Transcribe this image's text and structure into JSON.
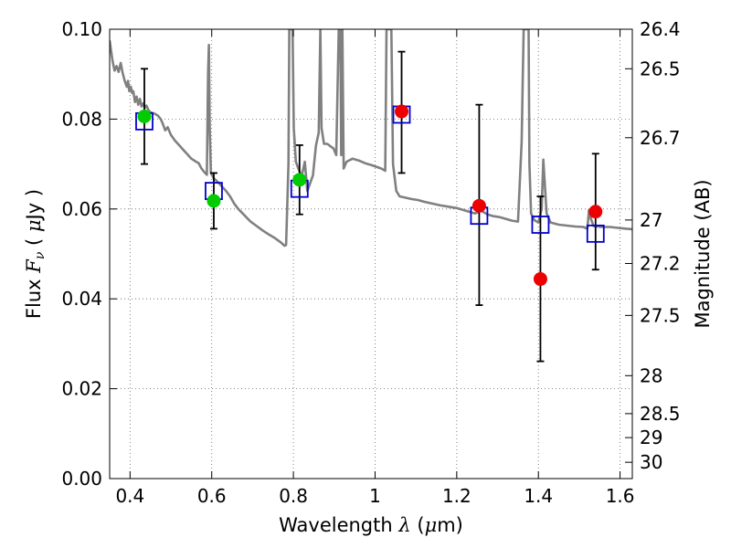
{
  "chart_data": {
    "type": "scatter",
    "xlabel": {
      "prefix": "Wavelength",
      "symbol": "λ",
      "unit_open": " (",
      "unit_mu": "μ",
      "unit_rest": "m)"
    },
    "ylabel": {
      "prefix": "Flux",
      "symbol_main": "F",
      "symbol_sub": "ν",
      "unit_open": " ( ",
      "unit_mu": "μ",
      "unit_rest": "Jy )"
    },
    "y2label": "Magnitude (AB)",
    "xlim": [
      0.35,
      1.63
    ],
    "ylim": [
      0.0,
      0.1
    ],
    "xticks": [
      {
        "value": 0.4,
        "label": "0.4"
      },
      {
        "value": 0.6,
        "label": "0.6"
      },
      {
        "value": 0.8,
        "label": "0.8"
      },
      {
        "value": 1.0,
        "label": "1"
      },
      {
        "value": 1.2,
        "label": "1.2"
      },
      {
        "value": 1.4,
        "label": "1.4"
      },
      {
        "value": 1.6,
        "label": "1.6"
      }
    ],
    "yticks": [
      {
        "value": 0.0,
        "label": "0.00"
      },
      {
        "value": 0.02,
        "label": "0.02"
      },
      {
        "value": 0.04,
        "label": "0.04"
      },
      {
        "value": 0.06,
        "label": "0.06"
      },
      {
        "value": 0.08,
        "label": "0.08"
      },
      {
        "value": 0.1,
        "label": "0.10"
      }
    ],
    "magnitude_ticks": [
      {
        "value": 26.4,
        "label": "26.4"
      },
      {
        "value": 26.5,
        "label": "26.5"
      },
      {
        "value": 26.7,
        "label": "26.7"
      },
      {
        "value": 27.0,
        "label": "27"
      },
      {
        "value": 27.2,
        "label": "27.2"
      },
      {
        "value": 27.5,
        "label": "27.5"
      },
      {
        "value": 28.0,
        "label": "28"
      },
      {
        "value": 28.5,
        "label": "28.5"
      },
      {
        "value": 29.0,
        "label": "29"
      },
      {
        "value": 30.0,
        "label": "30"
      }
    ],
    "grid": true,
    "colors": {
      "model": "#808080",
      "model_photometry": "#0000cc",
      "observed_optical": "#00cc00",
      "observed_nir": "#ee0000",
      "errorbar": "#000000",
      "grid": "#666666"
    },
    "series": [
      {
        "name": "model-spectrum",
        "style": "line",
        "points": [
          [
            0.35,
            0.0975
          ],
          [
            0.357,
            0.093
          ],
          [
            0.362,
            0.0908
          ],
          [
            0.367,
            0.0918
          ],
          [
            0.372,
            0.0905
          ],
          [
            0.377,
            0.0925
          ],
          [
            0.382,
            0.0902
          ],
          [
            0.387,
            0.0885
          ],
          [
            0.392,
            0.0872
          ],
          [
            0.395,
            0.0885
          ],
          [
            0.398,
            0.0862
          ],
          [
            0.402,
            0.0872
          ],
          [
            0.405,
            0.0858
          ],
          [
            0.408,
            0.0862
          ],
          [
            0.412,
            0.0838
          ],
          [
            0.416,
            0.085
          ],
          [
            0.42,
            0.0832
          ],
          [
            0.424,
            0.0845
          ],
          [
            0.428,
            0.0828
          ],
          [
            0.432,
            0.0835
          ],
          [
            0.436,
            0.0825
          ],
          [
            0.44,
            0.083
          ],
          [
            0.445,
            0.082
          ],
          [
            0.45,
            0.0815
          ],
          [
            0.46,
            0.0812
          ],
          [
            0.468,
            0.0808
          ],
          [
            0.475,
            0.08
          ],
          [
            0.48,
            0.079
          ],
          [
            0.486,
            0.0775
          ],
          [
            0.492,
            0.0782
          ],
          [
            0.5,
            0.0765
          ],
          [
            0.51,
            0.0752
          ],
          [
            0.52,
            0.0742
          ],
          [
            0.53,
            0.0732
          ],
          [
            0.54,
            0.0722
          ],
          [
            0.55,
            0.0712
          ],
          [
            0.56,
            0.0706
          ],
          [
            0.568,
            0.0702
          ],
          [
            0.575,
            0.069
          ],
          [
            0.582,
            0.0682
          ],
          [
            0.588,
            0.0676
          ],
          [
            0.591,
            0.09
          ],
          [
            0.593,
            0.0965
          ],
          [
            0.595,
            0.078
          ],
          [
            0.598,
            0.068
          ],
          [
            0.605,
            0.0668
          ],
          [
            0.615,
            0.066
          ],
          [
            0.625,
            0.065
          ],
          [
            0.635,
            0.064
          ],
          [
            0.645,
            0.0628
          ],
          [
            0.655,
            0.0612
          ],
          [
            0.665,
            0.06
          ],
          [
            0.68,
            0.0586
          ],
          [
            0.695,
            0.0572
          ],
          [
            0.71,
            0.0562
          ],
          [
            0.725,
            0.0552
          ],
          [
            0.74,
            0.0543
          ],
          [
            0.755,
            0.0535
          ],
          [
            0.77,
            0.0525
          ],
          [
            0.778,
            0.0518
          ],
          [
            0.782,
            0.052
          ],
          [
            0.788,
            0.07
          ],
          [
            0.79,
            0.1
          ],
          [
            0.798,
            0.1
          ],
          [
            0.801,
            0.078
          ],
          [
            0.806,
            0.0705
          ],
          [
            0.812,
            0.069
          ],
          [
            0.82,
            0.0672
          ],
          [
            0.828,
            0.0705
          ],
          [
            0.834,
            0.064
          ],
          [
            0.84,
            0.0655
          ],
          [
            0.848,
            0.0675
          ],
          [
            0.855,
            0.074
          ],
          [
            0.862,
            0.077
          ],
          [
            0.866,
            0.1
          ],
          [
            0.869,
            0.078
          ],
          [
            0.875,
            0.0745
          ],
          [
            0.883,
            0.0745
          ],
          [
            0.89,
            0.074
          ],
          [
            0.898,
            0.0735
          ],
          [
            0.905,
            0.072
          ],
          [
            0.911,
            0.1
          ],
          [
            0.915,
            0.1
          ],
          [
            0.917,
            0.072
          ],
          [
            0.92,
            0.1
          ],
          [
            0.923,
            0.069
          ],
          [
            0.93,
            0.0705
          ],
          [
            0.945,
            0.0712
          ],
          [
            0.96,
            0.0708
          ],
          [
            0.975,
            0.0702
          ],
          [
            0.99,
            0.0698
          ],
          [
            1.0,
            0.0695
          ],
          [
            1.015,
            0.069
          ],
          [
            1.025,
            0.0685
          ],
          [
            1.028,
            0.1
          ],
          [
            1.04,
            0.1
          ],
          [
            1.044,
            0.07
          ],
          [
            1.052,
            0.064
          ],
          [
            1.06,
            0.0628
          ],
          [
            1.075,
            0.0625
          ],
          [
            1.09,
            0.0622
          ],
          [
            1.105,
            0.062
          ],
          [
            1.12,
            0.0616
          ],
          [
            1.14,
            0.0612
          ],
          [
            1.16,
            0.0608
          ],
          [
            1.18,
            0.0605
          ],
          [
            1.2,
            0.0602
          ],
          [
            1.215,
            0.0598
          ],
          [
            1.23,
            0.0594
          ],
          [
            1.245,
            0.059
          ],
          [
            1.26,
            0.0596
          ],
          [
            1.275,
            0.0588
          ],
          [
            1.29,
            0.0584
          ],
          [
            1.305,
            0.0582
          ],
          [
            1.32,
            0.0578
          ],
          [
            1.335,
            0.0574
          ],
          [
            1.35,
            0.0572
          ],
          [
            1.359,
            0.075
          ],
          [
            1.362,
            0.09
          ],
          [
            1.364,
            0.1
          ],
          [
            1.376,
            0.1
          ],
          [
            1.378,
            0.07
          ],
          [
            1.382,
            0.059
          ],
          [
            1.39,
            0.0575
          ],
          [
            1.4,
            0.057
          ],
          [
            1.408,
            0.06
          ],
          [
            1.412,
            0.071
          ],
          [
            1.416,
            0.065
          ],
          [
            1.42,
            0.059
          ],
          [
            1.43,
            0.057
          ],
          [
            1.45,
            0.0565
          ],
          [
            1.47,
            0.0563
          ],
          [
            1.49,
            0.0561
          ],
          [
            1.51,
            0.056
          ],
          [
            1.52,
            0.0556
          ],
          [
            1.524,
            0.0598
          ],
          [
            1.528,
            0.058
          ],
          [
            1.535,
            0.0562
          ],
          [
            1.555,
            0.056
          ],
          [
            1.575,
            0.056
          ],
          [
            1.595,
            0.0558
          ],
          [
            1.615,
            0.0556
          ],
          [
            1.63,
            0.0555
          ]
        ]
      },
      {
        "name": "model-photometry",
        "style": "open-square",
        "points": [
          [
            0.435,
            0.0795
          ],
          [
            0.605,
            0.064
          ],
          [
            0.815,
            0.0645
          ],
          [
            1.065,
            0.081
          ],
          [
            1.255,
            0.0585
          ],
          [
            1.405,
            0.0565
          ],
          [
            1.54,
            0.0545
          ]
        ]
      },
      {
        "name": "observed-optical",
        "style": "filled-circle",
        "points": [
          [
            0.435,
            0.0806
          ],
          [
            0.605,
            0.0618
          ],
          [
            0.815,
            0.0665
          ]
        ]
      },
      {
        "name": "observed-nir",
        "style": "filled-circle",
        "points": [
          [
            1.065,
            0.0817
          ],
          [
            1.255,
            0.0607
          ],
          [
            1.405,
            0.0444
          ],
          [
            1.54,
            0.0594
          ]
        ]
      },
      {
        "name": "errorbars",
        "style": "errorbar",
        "points": [
          {
            "x": 0.435,
            "low": 0.07,
            "high": 0.0912
          },
          {
            "x": 0.605,
            "low": 0.0556,
            "high": 0.068
          },
          {
            "x": 0.815,
            "low": 0.0588,
            "high": 0.0742
          },
          {
            "x": 1.065,
            "low": 0.068,
            "high": 0.095
          },
          {
            "x": 1.255,
            "low": 0.0386,
            "high": 0.0832
          },
          {
            "x": 1.405,
            "low": 0.0261,
            "high": 0.0628
          },
          {
            "x": 1.54,
            "low": 0.0465,
            "high": 0.0723
          }
        ]
      }
    ]
  }
}
